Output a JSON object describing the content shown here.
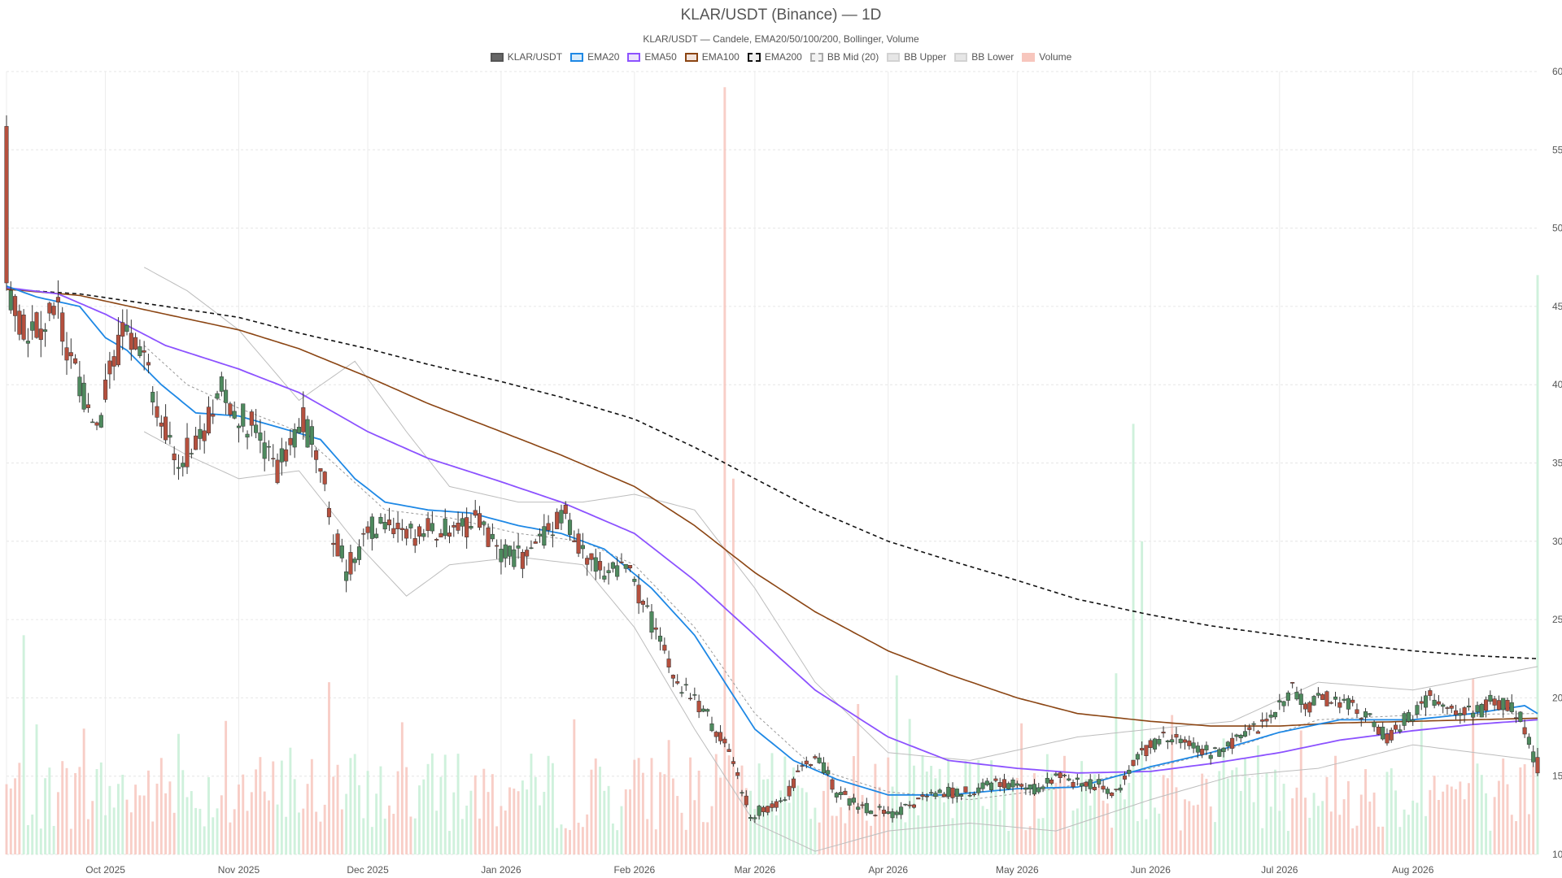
{
  "chart_data": {
    "type": "candlestick",
    "title": "KLAR/USDT (Binance) — 1D",
    "subtitle": "KLAR/USDT — Candele, EMA20/50/100/200, Bollinger, Volume",
    "legend": [
      {
        "label": "KLAR/USDT",
        "fill": "#666666",
        "stroke": "#555555",
        "dashed": false
      },
      {
        "label": "EMA20",
        "fill": "#d9ecfb",
        "stroke": "#1e88e5",
        "dashed": false
      },
      {
        "label": "EMA50",
        "fill": "#ece4fb",
        "stroke": "#8c52ff",
        "dashed": false
      },
      {
        "label": "EMA100",
        "fill": "#f3e4dc",
        "stroke": "#8b4513",
        "dashed": false
      },
      {
        "label": "EMA200",
        "fill": "#eeeeee",
        "stroke": "#111111",
        "dashed": true
      },
      {
        "label": "BB Mid (20)",
        "fill": "#f2f2f2",
        "stroke": "#aaaaaa",
        "dashed": true
      },
      {
        "label": "BB Upper",
        "fill": "#e6e6e6",
        "stroke": "#d2d2d2",
        "dashed": false
      },
      {
        "label": "BB Lower",
        "fill": "#e6e6e6",
        "stroke": "#d2d2d2",
        "dashed": false
      },
      {
        "label": "Volume",
        "fill": "#f7c6bd",
        "stroke": "#f7c6bd",
        "dashed": false
      }
    ],
    "x_start": "2025-09-08",
    "x_end": "2026-08-30",
    "y_range": [
      10,
      60
    ],
    "y_ticks": [
      10,
      15,
      20,
      25,
      30,
      35,
      40,
      45,
      50,
      55,
      60
    ],
    "y_axis_side": "right",
    "x_ticks": [
      {
        "date": "2025-10-01",
        "label": "Oct 2025"
      },
      {
        "date": "2025-11-01",
        "label": "Nov 2025"
      },
      {
        "date": "2025-12-01",
        "label": "Dec 2025"
      },
      {
        "date": "2026-01-01",
        "label": "Jan 2026"
      },
      {
        "date": "2026-02-01",
        "label": "Feb 2026"
      },
      {
        "date": "2026-03-01",
        "label": "Mar 2026"
      },
      {
        "date": "2026-04-01",
        "label": "Apr 2026"
      },
      {
        "date": "2026-05-01",
        "label": "May 2026"
      },
      {
        "date": "2026-06-01",
        "label": "Jun 2026"
      },
      {
        "date": "2026-07-01",
        "label": "Jul 2026"
      },
      {
        "date": "2026-08-01",
        "label": "Aug 2026"
      }
    ],
    "grid": true,
    "colors": {
      "up": "#4e8a5e",
      "down": "#b5503e",
      "volume_up": "#c7efd6",
      "volume_down": "#f7c6bd",
      "ema20": "#1e88e5",
      "ema50": "#8c52ff",
      "ema100": "#8b4513",
      "ema200": "#111111",
      "bb_band": "#bdbdbd",
      "bb_mid": "#999999"
    },
    "close_path": [
      [
        "2025-09-08",
        46.3
      ],
      [
        "2025-09-12",
        43.5
      ],
      [
        "2025-09-20",
        44.5
      ],
      [
        "2025-09-25",
        40.0
      ],
      [
        "2025-09-29",
        37.0
      ],
      [
        "2025-10-02",
        41.0
      ],
      [
        "2025-10-06",
        43.5
      ],
      [
        "2025-10-10",
        41.5
      ],
      [
        "2025-10-14",
        37.5
      ],
      [
        "2025-10-18",
        35.2
      ],
      [
        "2025-10-22",
        36.0
      ],
      [
        "2025-10-28",
        39.5
      ],
      [
        "2025-11-02",
        38.0
      ],
      [
        "2025-11-06",
        36.5
      ],
      [
        "2025-11-10",
        34.5
      ],
      [
        "2025-11-16",
        37.5
      ],
      [
        "2025-11-20",
        35.2
      ],
      [
        "2025-11-23",
        30.5
      ],
      [
        "2025-11-26",
        28.2
      ],
      [
        "2025-12-01",
        30.5
      ],
      [
        "2025-12-06",
        31.5
      ],
      [
        "2025-12-12",
        30.5
      ],
      [
        "2025-12-20",
        31.0
      ],
      [
        "2025-12-26",
        31.2
      ],
      [
        "2026-01-01",
        29.5
      ],
      [
        "2026-01-06",
        28.8
      ],
      [
        "2026-01-12",
        30.5
      ],
      [
        "2026-01-16",
        31.5
      ],
      [
        "2026-01-20",
        29.5
      ],
      [
        "2026-01-24",
        28.0
      ],
      [
        "2026-01-30",
        28.5
      ],
      [
        "2026-02-04",
        25.5
      ],
      [
        "2026-02-10",
        21.5
      ],
      [
        "2026-02-16",
        19.5
      ],
      [
        "2026-02-20",
        18.0
      ],
      [
        "2026-02-24",
        16.0
      ],
      [
        "2026-02-28",
        12.5
      ],
      [
        "2026-03-04",
        13.0
      ],
      [
        "2026-03-08",
        13.5
      ],
      [
        "2026-03-12",
        15.5
      ],
      [
        "2026-03-16",
        16.0
      ],
      [
        "2026-03-20",
        14.0
      ],
      [
        "2026-03-26",
        13.0
      ],
      [
        "2026-04-02",
        12.5
      ],
      [
        "2026-04-09",
        13.5
      ],
      [
        "2026-04-15",
        14.0
      ],
      [
        "2026-04-20",
        14.0
      ],
      [
        "2026-04-24",
        14.5
      ],
      [
        "2026-05-01",
        14.5
      ],
      [
        "2026-05-06",
        14.0
      ],
      [
        "2026-05-10",
        15.0
      ],
      [
        "2026-05-14",
        14.5
      ],
      [
        "2026-05-20",
        14.5
      ],
      [
        "2026-05-24",
        14.0
      ],
      [
        "2026-05-28",
        16.0
      ],
      [
        "2026-06-04",
        17.5
      ],
      [
        "2026-06-10",
        17.0
      ],
      [
        "2026-06-16",
        16.5
      ],
      [
        "2026-06-22",
        17.5
      ],
      [
        "2026-06-28",
        18.5
      ],
      [
        "2026-07-04",
        20.5
      ],
      [
        "2026-07-08",
        19.5
      ],
      [
        "2026-07-12",
        20.0
      ],
      [
        "2026-07-18",
        19.5
      ],
      [
        "2026-07-22",
        18.5
      ],
      [
        "2026-07-26",
        17.5
      ],
      [
        "2026-07-30",
        18.5
      ],
      [
        "2026-08-05",
        20.0
      ],
      [
        "2026-08-10",
        19.5
      ],
      [
        "2026-08-16",
        19.0
      ],
      [
        "2026-08-20",
        20.0
      ],
      [
        "2026-08-26",
        18.8
      ],
      [
        "2026-08-30",
        15.5
      ]
    ],
    "ema20": [
      [
        "2025-09-08",
        46.3
      ],
      [
        "2025-09-15",
        45.6
      ],
      [
        "2025-09-25",
        45.0
      ],
      [
        "2025-10-01",
        43.0
      ],
      [
        "2025-10-06",
        42.2
      ],
      [
        "2025-10-14",
        40.0
      ],
      [
        "2025-10-22",
        38.2
      ],
      [
        "2025-11-01",
        38.0
      ],
      [
        "2025-11-10",
        37.3
      ],
      [
        "2025-11-20",
        36.5
      ],
      [
        "2025-11-28",
        34.0
      ],
      [
        "2025-12-05",
        32.5
      ],
      [
        "2025-12-15",
        32.0
      ],
      [
        "2025-12-25",
        31.8
      ],
      [
        "2026-01-05",
        31.0
      ],
      [
        "2026-01-15",
        30.5
      ],
      [
        "2026-01-25",
        29.5
      ],
      [
        "2026-02-05",
        27.0
      ],
      [
        "2026-02-15",
        24.0
      ],
      [
        "2026-02-22",
        21.0
      ],
      [
        "2026-03-01",
        18.0
      ],
      [
        "2026-03-10",
        16.0
      ],
      [
        "2026-03-20",
        14.8
      ],
      [
        "2026-04-01",
        13.8
      ],
      [
        "2026-04-15",
        13.8
      ],
      [
        "2026-05-01",
        14.2
      ],
      [
        "2026-05-15",
        14.3
      ],
      [
        "2026-06-01",
        15.6
      ],
      [
        "2026-06-15",
        16.5
      ],
      [
        "2026-07-01",
        17.8
      ],
      [
        "2026-07-15",
        18.6
      ],
      [
        "2026-08-01",
        18.6
      ],
      [
        "2026-08-15",
        19.0
      ],
      [
        "2026-08-27",
        19.5
      ],
      [
        "2026-08-30",
        19.0
      ]
    ],
    "ema50": [
      [
        "2025-09-08",
        46.2
      ],
      [
        "2025-09-20",
        45.8
      ],
      [
        "2025-10-01",
        44.5
      ],
      [
        "2025-10-15",
        42.5
      ],
      [
        "2025-11-01",
        41.0
      ],
      [
        "2025-11-15",
        39.5
      ],
      [
        "2025-12-01",
        37.0
      ],
      [
        "2025-12-15",
        35.3
      ],
      [
        "2026-01-01",
        33.8
      ],
      [
        "2026-01-15",
        32.5
      ],
      [
        "2026-02-01",
        30.5
      ],
      [
        "2026-02-15",
        27.5
      ],
      [
        "2026-03-01",
        24.0
      ],
      [
        "2026-03-15",
        20.5
      ],
      [
        "2026-04-01",
        17.5
      ],
      [
        "2026-04-15",
        16.0
      ],
      [
        "2026-05-01",
        15.5
      ],
      [
        "2026-05-15",
        15.2
      ],
      [
        "2026-06-01",
        15.3
      ],
      [
        "2026-06-15",
        15.8
      ],
      [
        "2026-07-01",
        16.5
      ],
      [
        "2026-07-15",
        17.3
      ],
      [
        "2026-08-01",
        17.9
      ],
      [
        "2026-08-15",
        18.3
      ],
      [
        "2026-08-30",
        18.6
      ]
    ],
    "ema100": [
      [
        "2025-09-08",
        46.1
      ],
      [
        "2025-09-25",
        45.7
      ],
      [
        "2025-10-15",
        44.5
      ],
      [
        "2025-11-01",
        43.5
      ],
      [
        "2025-11-15",
        42.3
      ],
      [
        "2025-12-01",
        40.5
      ],
      [
        "2025-12-15",
        38.8
      ],
      [
        "2026-01-01",
        37.0
      ],
      [
        "2026-01-15",
        35.5
      ],
      [
        "2026-02-01",
        33.5
      ],
      [
        "2026-02-15",
        31.0
      ],
      [
        "2026-03-01",
        28.0
      ],
      [
        "2026-03-15",
        25.5
      ],
      [
        "2026-04-01",
        23.0
      ],
      [
        "2026-04-15",
        21.5
      ],
      [
        "2026-05-01",
        20.0
      ],
      [
        "2026-05-15",
        19.0
      ],
      [
        "2026-06-01",
        18.5
      ],
      [
        "2026-06-15",
        18.2
      ],
      [
        "2026-07-01",
        18.2
      ],
      [
        "2026-07-15",
        18.4
      ],
      [
        "2026-08-01",
        18.5
      ],
      [
        "2026-08-15",
        18.6
      ],
      [
        "2026-08-30",
        18.7
      ]
    ],
    "ema200": [
      [
        "2025-09-08",
        46.1
      ],
      [
        "2025-09-25",
        45.8
      ],
      [
        "2025-10-15",
        45.0
      ],
      [
        "2025-11-01",
        44.3
      ],
      [
        "2025-11-15",
        43.3
      ],
      [
        "2025-12-01",
        42.3
      ],
      [
        "2025-12-15",
        41.3
      ],
      [
        "2026-01-01",
        40.2
      ],
      [
        "2026-01-15",
        39.2
      ],
      [
        "2026-02-01",
        37.8
      ],
      [
        "2026-02-15",
        36.0
      ],
      [
        "2026-03-01",
        34.0
      ],
      [
        "2026-03-15",
        32.0
      ],
      [
        "2026-04-01",
        30.0
      ],
      [
        "2026-04-15",
        28.8
      ],
      [
        "2026-05-01",
        27.5
      ],
      [
        "2026-05-15",
        26.3
      ],
      [
        "2026-06-01",
        25.3
      ],
      [
        "2026-06-15",
        24.6
      ],
      [
        "2026-07-01",
        24.0
      ],
      [
        "2026-07-15",
        23.5
      ],
      [
        "2026-08-01",
        23.0
      ],
      [
        "2026-08-15",
        22.7
      ],
      [
        "2026-08-30",
        22.5
      ]
    ],
    "bb_mid": [
      [
        "2025-10-10",
        42.5
      ],
      [
        "2025-10-20",
        40.0
      ],
      [
        "2025-11-01",
        38.5
      ],
      [
        "2025-11-15",
        37.0
      ],
      [
        "2025-11-25",
        34.5
      ],
      [
        "2025-12-05",
        32.0
      ],
      [
        "2025-12-20",
        31.5
      ],
      [
        "2026-01-05",
        30.5
      ],
      [
        "2026-01-20",
        30.0
      ],
      [
        "2026-02-01",
        28.5
      ],
      [
        "2026-02-15",
        24.5
      ],
      [
        "2026-03-01",
        19.0
      ],
      [
        "2026-03-15",
        15.5
      ],
      [
        "2026-04-01",
        14.0
      ],
      [
        "2026-04-20",
        13.5
      ],
      [
        "2026-05-10",
        14.2
      ],
      [
        "2026-06-01",
        15.5
      ],
      [
        "2026-06-20",
        16.8
      ],
      [
        "2026-07-10",
        18.6
      ],
      [
        "2026-08-01",
        18.9
      ],
      [
        "2026-08-30",
        19.0
      ]
    ],
    "bb_upper": [
      [
        "2025-10-10",
        47.5
      ],
      [
        "2025-10-20",
        46.0
      ],
      [
        "2025-11-01",
        43.5
      ],
      [
        "2025-11-15",
        39.0
      ],
      [
        "2025-11-28",
        41.5
      ],
      [
        "2025-12-10",
        37.0
      ],
      [
        "2025-12-20",
        33.5
      ],
      [
        "2026-01-05",
        32.5
      ],
      [
        "2026-01-20",
        32.5
      ],
      [
        "2026-02-01",
        33.0
      ],
      [
        "2026-02-15",
        32.0
      ],
      [
        "2026-03-01",
        27.0
      ],
      [
        "2026-03-15",
        21.0
      ],
      [
        "2026-04-01",
        16.5
      ],
      [
        "2026-04-20",
        16.0
      ],
      [
        "2026-05-15",
        17.5
      ],
      [
        "2026-06-01",
        18.0
      ],
      [
        "2026-06-20",
        18.5
      ],
      [
        "2026-07-10",
        21.0
      ],
      [
        "2026-08-01",
        20.5
      ],
      [
        "2026-08-30",
        22.0
      ]
    ],
    "bb_lower": [
      [
        "2025-10-10",
        37.0
      ],
      [
        "2025-10-20",
        35.5
      ],
      [
        "2025-11-01",
        34.0
      ],
      [
        "2025-11-15",
        34.5
      ],
      [
        "2025-11-28",
        30.0
      ],
      [
        "2025-12-10",
        26.5
      ],
      [
        "2025-12-20",
        28.5
      ],
      [
        "2026-01-05",
        29.0
      ],
      [
        "2026-01-20",
        28.5
      ],
      [
        "2026-02-01",
        24.5
      ],
      [
        "2026-02-15",
        18.0
      ],
      [
        "2026-03-01",
        12.0
      ],
      [
        "2026-03-15",
        10.2
      ],
      [
        "2026-04-01",
        11.5
      ],
      [
        "2026-04-20",
        12.0
      ],
      [
        "2026-05-10",
        11.5
      ],
      [
        "2026-06-01",
        13.5
      ],
      [
        "2026-06-20",
        15.0
      ],
      [
        "2026-07-10",
        15.5
      ],
      [
        "2026-08-01",
        17.0
      ],
      [
        "2026-08-30",
        16.0
      ]
    ],
    "volume_scale_note": "relative",
    "volume_spikes": [
      {
        "date": "2025-09-12",
        "value": 0.28
      },
      {
        "date": "2025-11-22",
        "value": 0.22
      },
      {
        "date": "2026-02-22",
        "value": 0.98
      },
      {
        "date": "2026-02-24",
        "value": 0.48
      },
      {
        "date": "2026-05-28",
        "value": 0.55
      },
      {
        "date": "2026-05-30",
        "value": 0.4
      },
      {
        "date": "2026-08-30",
        "value": 0.74
      }
    ]
  }
}
